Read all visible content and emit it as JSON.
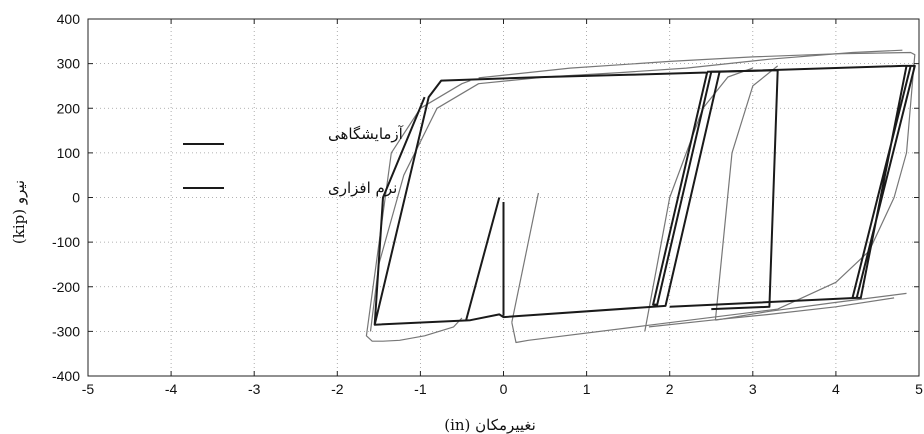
{
  "chart_data": {
    "type": "line",
    "title": "",
    "xlabel": "نغییرمکان (in)",
    "ylabel": "نیرو (kip)",
    "xlim": [
      -5,
      5
    ],
    "ylim": [
      -400,
      400
    ],
    "xticks": [
      "-5",
      "-4",
      "-3",
      "-2",
      "-1",
      "0",
      "1",
      "2",
      "3",
      "4",
      "5"
    ],
    "yticks": [
      "400",
      "300",
      "200",
      "100",
      "0",
      "-100",
      "-200",
      "-300",
      "-400"
    ],
    "grid": true,
    "legend_position": "left",
    "series": [
      {
        "name": "آزمایشگاهی",
        "color": "#777777",
        "loops": [
          {
            "x": [
              -0.5,
              -0.6,
              -0.95,
              -1.25,
              -1.45,
              -1.58,
              -1.65,
              -1.35,
              -1.0,
              -0.5,
              -0.4
            ],
            "y": [
              -270,
              -290,
              -310,
              -320,
              -322,
              -322,
              -310,
              100,
              200,
              255,
              262
            ]
          },
          {
            "x": [
              -0.3,
              0.8,
              2.0,
              3.0,
              4.0,
              4.9,
              4.95,
              4.85,
              4.7,
              4.4,
              4.0,
              3.3,
              1.8,
              0.3,
              0.15,
              0.1
            ],
            "y": [
              268,
              290,
              305,
              315,
              322,
              325,
              320,
              100,
              0,
              -120,
              -190,
              -250,
              -285,
              -320,
              -325,
              -280
            ]
          },
          {
            "x": [
              0.1,
              0.42
            ],
            "y": [
              -280,
              10
            ]
          },
          {
            "x": [
              1.75,
              2.5,
              3.2,
              4.0,
              4.7
            ],
            "y": [
              -290,
              -275,
              -262,
              -245,
              -225
            ]
          },
          {
            "x": [
              1.7,
              2.0,
              2.4,
              2.7,
              3.0
            ],
            "y": [
              -300,
              0,
              200,
              270,
              290
            ]
          },
          {
            "x": [
              2.55,
              3.2,
              4.0,
              4.85
            ],
            "y": [
              -275,
              -255,
              -235,
              -215
            ]
          },
          {
            "x": [
              2.55,
              2.75,
              3.0,
              3.3
            ],
            "y": [
              -275,
              100,
              250,
              295
            ]
          },
          {
            "x": [
              -1.6,
              -1.5,
              -1.2,
              -0.8,
              -0.3,
              0.5,
              1.4,
              2.2,
              3.2,
              4.2,
              4.8
            ],
            "y": [
              -300,
              -150,
              50,
              200,
              255,
              270,
              280,
              290,
              310,
              325,
              330
            ]
          }
        ]
      },
      {
        "name": "نرم افزاری",
        "color": "#1a1a1a",
        "loops": [
          {
            "x": [
              -1.55,
              -0.9,
              -0.75,
              0.5,
              1.5,
              2.4,
              2.45,
              1.8,
              1.85,
              2.5,
              2.6,
              1.95,
              0.0,
              -0.05,
              -0.4,
              -1.55,
              -1.45,
              -0.95
            ],
            "y": [
              -285,
              225,
              262,
              270,
              275,
              280,
              280,
              -240,
              -240,
              282,
              282,
              -243,
              -268,
              -262,
              -275,
              -285,
              0,
              225
            ]
          },
          {
            "x": [
              -0.45,
              -0.05
            ],
            "y": [
              -275,
              0
            ]
          },
          {
            "x": [
              0.0,
              0.0
            ],
            "y": [
              -265,
              -10
            ]
          },
          {
            "x": [
              2.6,
              4.8,
              4.9,
              4.2,
              4.3,
              4.85,
              4.95,
              4.25,
              2.0
            ],
            "y": [
              282,
              295,
              295,
              -225,
              -225,
              295,
              295,
              -225,
              -245
            ]
          },
          {
            "x": [
              2.5,
              3.2,
              3.3,
              2.45
            ],
            "y": [
              -250,
              -245,
              285,
              282
            ]
          }
        ]
      }
    ]
  }
}
